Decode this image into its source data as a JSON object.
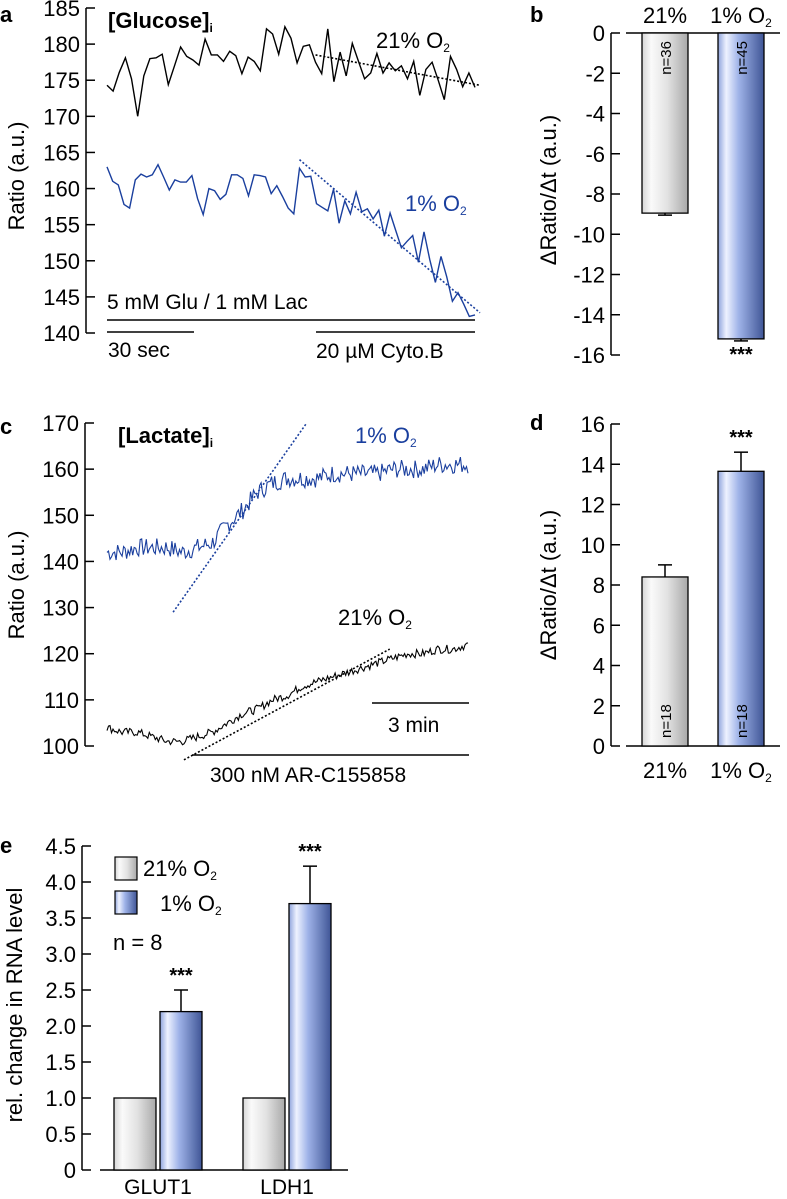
{
  "chart_data": [
    {
      "panel": "a",
      "type": "line",
      "title": "[Glucose]",
      "title_subscript": "i",
      "ylabel": "Ratio (a.u.)",
      "ylim": [
        140,
        185
      ],
      "yticks": [
        140,
        145,
        150,
        155,
        160,
        165,
        170,
        175,
        180,
        185
      ],
      "x_unit": "sample index",
      "series": [
        {
          "name": "21% O2",
          "label_main": "21% O",
          "label_sub": "2",
          "color": "#000000",
          "values": [
            174.3,
            173.5,
            176.1,
            178.1,
            175.2,
            170.0,
            175.6,
            178.0,
            178.1,
            178.6,
            174.4,
            177.0,
            179.6,
            178.3,
            177.8,
            177.1,
            180.7,
            178.5,
            178.5,
            177.6,
            179.0,
            178.4,
            175.9,
            178.2,
            177.6,
            176.3,
            182.1,
            181.4,
            178.6,
            182.4,
            180.8,
            177.4,
            179.7,
            179.9,
            177.5,
            175.9,
            182.1,
            174.8,
            178.9,
            175.6,
            180.1,
            177.6,
            175.2,
            176.0,
            178.7,
            176.0,
            177.4,
            176.3,
            177.0,
            175.2,
            177.6,
            172.9,
            176.5,
            177.5,
            175.0,
            172.3,
            178.3,
            176.5,
            174.1,
            176.0,
            174.0
          ],
          "fit_line": {
            "start": 178.5,
            "end": 174.3,
            "start_index": 34,
            "end_index": 60
          }
        },
        {
          "name": "1% O2",
          "label_main": "1% O",
          "label_sub": "2",
          "color": "#1a3f9e",
          "values": [
            163.0,
            161.0,
            160.5,
            157.8,
            157.3,
            161.2,
            162.0,
            161.6,
            161.9,
            163.3,
            161.6,
            159.8,
            161.2,
            160.9,
            160.9,
            161.8,
            158.6,
            156.4,
            160.0,
            159.7,
            158.5,
            159.2,
            161.9,
            161.9,
            161.4,
            159.0,
            161.9,
            161.8,
            161.6,
            159.3,
            160.4,
            158.9,
            157.3,
            156.5,
            162.8,
            161.6,
            161.7,
            157.9,
            157.4,
            156.9,
            159.9,
            155.2,
            158.3,
            156.5,
            159.5,
            156.8,
            157.2,
            155.8,
            157.0,
            153.4,
            156.6,
            154.2,
            151.8,
            152.7,
            153.5,
            149.8,
            154.0,
            150.2,
            147.0,
            150.6,
            147.8,
            144.4,
            145.6,
            144.0,
            142.3,
            142.5
          ],
          "fit_line": {
            "start": 164.0,
            "end": 142.8,
            "start_index": 34,
            "end_index": 65
          }
        }
      ],
      "annotations": {
        "condition_bar": "5 mM Glu / 1 mM Lac",
        "scale_bar": "30 sec",
        "drug_bar": "20 µM Cyto.B"
      }
    },
    {
      "panel": "b",
      "type": "bar",
      "categories": [
        "21%",
        "1% O2"
      ],
      "category_labels": [
        {
          "main": "21%",
          "sub": ""
        },
        {
          "main": "1% O",
          "sub": "2"
        }
      ],
      "values": [
        -8.95,
        -15.2
      ],
      "errors": [
        0.1,
        0.1
      ],
      "n_labels": [
        "n=36",
        "n=45"
      ],
      "significance": [
        "",
        "***"
      ],
      "ylabel": "ΔRatio/Δt (a.u.)",
      "ylim": [
        -16,
        0
      ],
      "yticks": [
        0,
        -2,
        -4,
        -6,
        -8,
        -10,
        -12,
        -14,
        -16
      ],
      "colors": [
        "#d9d9d9",
        "#6f86c9"
      ]
    },
    {
      "panel": "c",
      "type": "line",
      "title": "[Lactate]",
      "title_subscript": "i",
      "ylabel": "Ratio (a.u.)",
      "ylim": [
        100,
        170
      ],
      "yticks": [
        100,
        110,
        120,
        130,
        140,
        150,
        160,
        170
      ],
      "x_unit": "sample index",
      "series": [
        {
          "name": "1% O2",
          "label_main": "1% O",
          "label_sub": "2",
          "color": "#1a3f9e",
          "baseline": [
            142,
            142,
            143,
            143,
            143,
            142,
            143,
            144,
            148,
            151,
            155,
            157,
            158,
            158,
            158,
            159,
            159,
            159,
            159,
            160,
            160,
            160,
            161,
            161,
            161
          ],
          "fit_line": {
            "start": 129,
            "end": 170,
            "start_frac": 0.1,
            "end_frac": 0.47
          }
        },
        {
          "name": "21% O2",
          "label_main": "21% O",
          "label_sub": "2",
          "color": "#000000",
          "baseline": [
            104,
            103,
            103,
            102,
            101,
            101,
            102,
            103,
            105,
            107,
            108,
            110,
            111,
            113,
            114,
            115,
            116,
            117,
            118,
            119,
            120,
            120,
            121,
            121,
            122
          ],
          "fit_line": {
            "start": 97,
            "end": 121,
            "start_frac": 0.13,
            "end_frac": 0.7
          }
        }
      ],
      "annotations": {
        "scale_bar": "3 min",
        "drug_bar": "300 nM AR-C155858"
      }
    },
    {
      "panel": "d",
      "type": "bar",
      "categories": [
        "21%",
        "1% O2"
      ],
      "category_labels": [
        {
          "main": "21%",
          "sub": ""
        },
        {
          "main": "1% O",
          "sub": "2"
        }
      ],
      "values": [
        8.4,
        13.65
      ],
      "errors": [
        0.6,
        0.95
      ],
      "n_labels": [
        "n=18",
        "n=18"
      ],
      "significance": [
        "",
        "***"
      ],
      "ylabel": "ΔRatio/Δt (a.u.)",
      "ylim": [
        0,
        16
      ],
      "yticks": [
        0,
        2,
        4,
        6,
        8,
        10,
        12,
        14,
        16
      ],
      "colors": [
        "#d9d9d9",
        "#6f86c9"
      ]
    },
    {
      "panel": "e",
      "type": "bar",
      "categories": [
        "GLUT1",
        "LDH1"
      ],
      "series": [
        {
          "name": "21% O2",
          "label_main": "21% O",
          "label_sub": "2",
          "values": [
            1.0,
            1.0
          ],
          "errors": [
            0,
            0
          ],
          "color": "#d9d9d9"
        },
        {
          "name": "1% O2",
          "label_main": "1% O",
          "label_sub": "2",
          "values": [
            2.2,
            3.7
          ],
          "errors": [
            0.3,
            0.52
          ],
          "color": "#6f86c9"
        }
      ],
      "significance": [
        "***",
        "***"
      ],
      "n_text": "n = 8",
      "ylabel": "rel. change in RNA level",
      "ylim": [
        0,
        4.5
      ],
      "yticks": [
        "0",
        "0.5",
        "1.0",
        "1.5",
        "2.0",
        "2.5",
        "3.0",
        "3.5",
        "4.0",
        "4.5"
      ],
      "legend_position": "top-left"
    }
  ],
  "panel_letters": [
    "a",
    "b",
    "c",
    "d",
    "e"
  ]
}
